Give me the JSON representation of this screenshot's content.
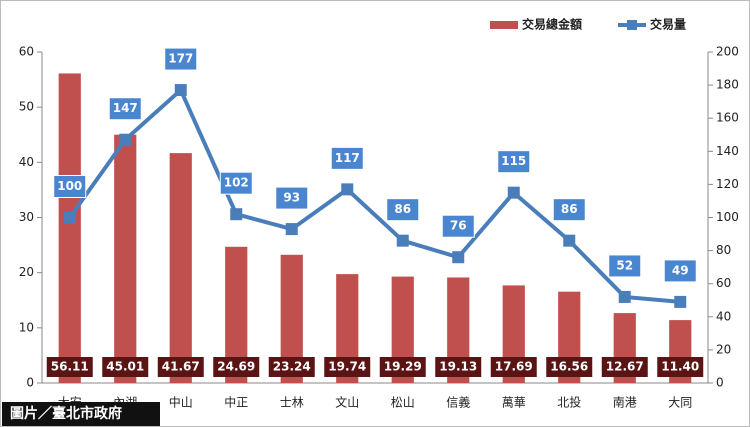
{
  "chart_data": {
    "type": "combo",
    "categories": [
      "大安",
      "內湖",
      "中山",
      "中正",
      "士林",
      "文山",
      "松山",
      "信義",
      "萬華",
      "北投",
      "南港",
      "大同"
    ],
    "series": [
      {
        "name": "交易總金額",
        "type": "bar",
        "color": "#c0504d",
        "label_color": "#5b1414",
        "values": [
          56.11,
          45.01,
          41.67,
          24.69,
          23.24,
          19.74,
          19.29,
          19.13,
          17.69,
          16.56,
          12.67,
          11.4
        ],
        "value_labels": [
          "56.11",
          "45.01",
          "41.67",
          "24.69",
          "23.24",
          "19.74",
          "19.29",
          "19.13",
          "17.69",
          "16.56",
          "12.67",
          "11.40"
        ]
      },
      {
        "name": "交易量",
        "type": "line",
        "axis": "y2",
        "color": "#4a7ebb",
        "label_color": "#4a86d0",
        "values": [
          100,
          147,
          177,
          102,
          93,
          117,
          86,
          76,
          115,
          86,
          52,
          49
        ]
      }
    ],
    "ylim": [
      0,
      60
    ],
    "yticks": [
      0,
      10,
      20,
      30,
      40,
      50,
      60
    ],
    "y2lim": [
      0,
      200
    ],
    "y2ticks": [
      0,
      20,
      40,
      60,
      80,
      100,
      120,
      140,
      160,
      180,
      200
    ],
    "legend": "top-right",
    "credit": "圖片／臺北市政府"
  }
}
